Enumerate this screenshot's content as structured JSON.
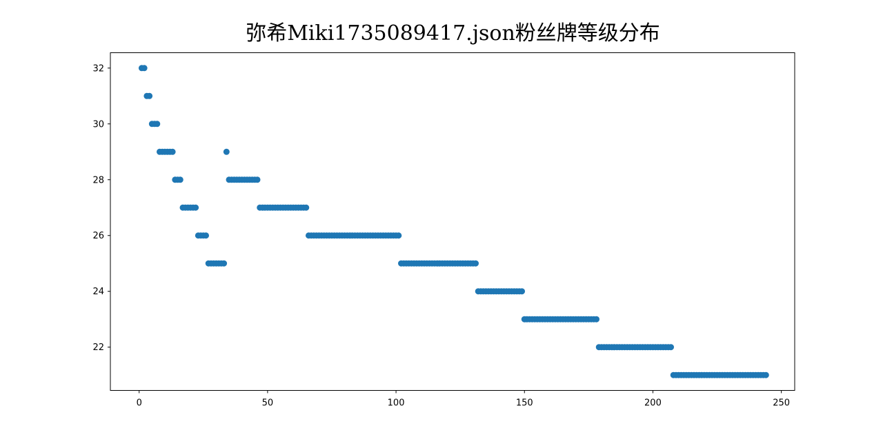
{
  "chart_data": {
    "type": "scatter",
    "title": "弥希Miki1735089417.json粉丝牌等级分布",
    "xlabel": "",
    "ylabel": "",
    "xlim": [
      -11.2,
      255.2
    ],
    "ylim": [
      20.45,
      32.55
    ],
    "x_ticks": [
      0,
      50,
      100,
      150,
      200,
      250
    ],
    "y_ticks": [
      22,
      24,
      26,
      28,
      30,
      32
    ],
    "x_tick_labels": [
      "0",
      "50",
      "100",
      "150",
      "200",
      "250"
    ],
    "y_tick_labels": [
      "22",
      "24",
      "26",
      "28",
      "30",
      "32"
    ],
    "grid": false,
    "marker_color": "#1f77b4",
    "groups": [
      {
        "y": 32,
        "x_start": 1,
        "x_end": 2
      },
      {
        "y": 31,
        "x_start": 3,
        "x_end": 4
      },
      {
        "y": 30,
        "x_start": 5,
        "x_end": 7
      },
      {
        "y": 29,
        "x_start": 8,
        "x_end": 13
      },
      {
        "y": 28,
        "x_start": 14,
        "x_end": 16
      },
      {
        "y": 27,
        "x_start": 17,
        "x_end": 22
      },
      {
        "y": 26,
        "x_start": 23,
        "x_end": 26
      },
      {
        "y": 25,
        "x_start": 27,
        "x_end": 33
      },
      {
        "y": 29,
        "x_start": 34,
        "x_end": 34
      },
      {
        "y": 28,
        "x_start": 35,
        "x_end": 46
      },
      {
        "y": 27,
        "x_start": 47,
        "x_end": 65
      },
      {
        "y": 26,
        "x_start": 66,
        "x_end": 101
      },
      {
        "y": 25,
        "x_start": 102,
        "x_end": 131
      },
      {
        "y": 24,
        "x_start": 132,
        "x_end": 149
      },
      {
        "y": 23,
        "x_start": 150,
        "x_end": 178
      },
      {
        "y": 22,
        "x_start": 179,
        "x_end": 207
      },
      {
        "y": 21,
        "x_start": 208,
        "x_end": 244
      }
    ]
  }
}
